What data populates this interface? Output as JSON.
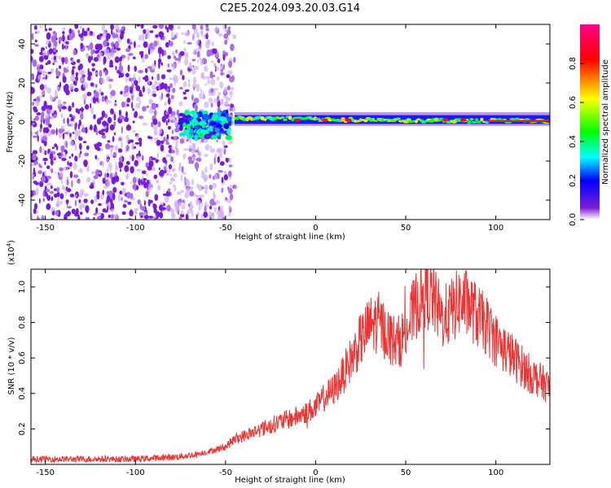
{
  "title": "C2E5.2024.093.20.03.G14",
  "chart_data": [
    {
      "type": "heatmap",
      "xlabel": "Height of straight line (km)",
      "ylabel": "Frequency (Hz)",
      "xlim": [
        -158,
        130
      ],
      "ylim": [
        -50,
        50
      ],
      "xticks": [
        -150,
        -100,
        -50,
        0,
        50,
        100
      ],
      "yticks": [
        -40,
        -20,
        0,
        20,
        40
      ],
      "xtick_labels": [
        "-150",
        "-100",
        "-50",
        "0",
        "50",
        "100"
      ],
      "ytick_labels": [
        "-40",
        "-20",
        "0",
        "20",
        "40"
      ],
      "colorbar": {
        "label": "Normalized spectral amplitude",
        "range": [
          0,
          1
        ],
        "ticks": [
          0.0,
          0.2,
          0.4,
          0.6,
          0.8
        ],
        "tick_labels": [
          "0.0",
          "0.2",
          "0.4",
          "0.6",
          "0.8"
        ],
        "colors": [
          "#ffffff",
          "#6a0dad",
          "#0000ff",
          "#00ffff",
          "#00ff00",
          "#ffff00",
          "#ff0000",
          "#ff00cc"
        ]
      },
      "regions": [
        {
          "name": "noise",
          "x": [
            -158,
            -45
          ],
          "y": [
            -50,
            50
          ],
          "amplitude": 0.3
        },
        {
          "name": "blob",
          "x": [
            -75,
            -47
          ],
          "y": [
            -8,
            5
          ],
          "amplitude": 0.35
        },
        {
          "name": "signal-line",
          "x": [
            -45,
            130
          ],
          "y": [
            -1,
            3
          ],
          "amplitude": 0.6
        }
      ]
    },
    {
      "type": "line",
      "xlabel": "Height of straight line (km)",
      "ylabel": "SNR (10 * v/v)",
      "y_scale_label": "(x10",
      "y_scale_exp": "4",
      "y_scale_close": ")",
      "xlim": [
        -158,
        130
      ],
      "ylim": [
        0,
        1.1
      ],
      "xticks": [
        -150,
        -100,
        -50,
        0,
        50,
        100
      ],
      "yticks": [
        0.2,
        0.4,
        0.6,
        0.8,
        1.0
      ],
      "xtick_labels": [
        "-150",
        "-100",
        "-50",
        "0",
        "50",
        "100"
      ],
      "ytick_labels": [
        "0.2",
        "0.4",
        "0.6",
        "0.8",
        "1.0"
      ],
      "color": "#ee3333",
      "series": [
        {
          "x": [
            -158,
            -140,
            -120,
            -100,
            -80,
            -70,
            -60,
            -50,
            -45,
            -40,
            -30,
            -20,
            -10,
            0,
            5,
            10,
            15,
            20,
            25,
            30,
            35,
            40,
            45,
            50,
            55,
            60,
            65,
            70,
            75,
            80,
            85,
            90,
            95,
            100,
            105,
            110,
            115,
            120,
            125,
            130
          ],
          "y": [
            0.03,
            0.03,
            0.03,
            0.03,
            0.04,
            0.05,
            0.07,
            0.1,
            0.14,
            0.16,
            0.2,
            0.24,
            0.27,
            0.32,
            0.38,
            0.42,
            0.5,
            0.6,
            0.7,
            0.78,
            0.8,
            0.73,
            0.68,
            0.74,
            0.88,
            0.98,
            0.94,
            0.82,
            0.86,
            0.92,
            0.9,
            0.83,
            0.78,
            0.7,
            0.65,
            0.6,
            0.55,
            0.5,
            0.47,
            0.43
          ]
        }
      ]
    }
  ]
}
